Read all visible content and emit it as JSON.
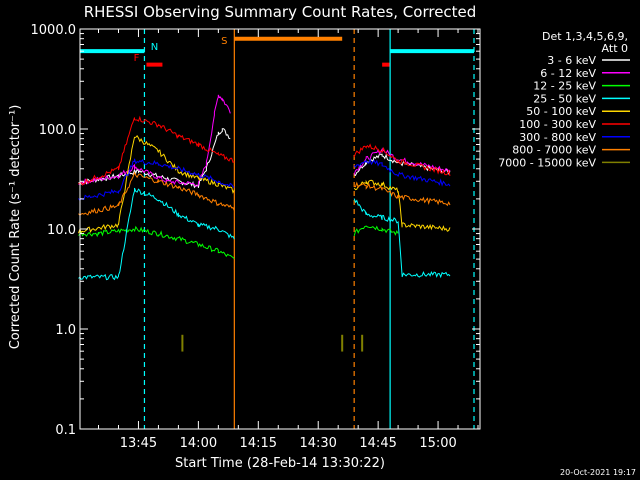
{
  "chart_data": {
    "type": "line",
    "title": "RHESSI Observing Summary Count Rates, Corrected",
    "xlabel": "Start Time (28-Feb-14 13:30:22)",
    "ylabel": "Corrected Count Rate (s⁻¹ detector⁻¹)",
    "yscale": "log",
    "ylim": [
      0.1,
      1000
    ],
    "xlim": [
      "13:30:22",
      "15:10:30"
    ],
    "yticks": [
      {
        "v": 0.1,
        "label": "0.1"
      },
      {
        "v": 1,
        "label": "1.0"
      },
      {
        "v": 10,
        "label": "10.0"
      },
      {
        "v": 100,
        "label": "100.0"
      },
      {
        "v": 1000,
        "label": "1000.0"
      }
    ],
    "xticks": [
      {
        "t": "13:45",
        "label": "13:45"
      },
      {
        "t": "14:00",
        "label": "14:00"
      },
      {
        "t": "14:15",
        "label": "14:15"
      },
      {
        "t": "14:30",
        "label": "14:30"
      },
      {
        "t": "14:45",
        "label": "14:45"
      },
      {
        "t": "15:00",
        "label": "15:00"
      }
    ],
    "legend_header": [
      "Det 1,3,4,5,6,9,",
      "Att 0"
    ],
    "legend_position": "right",
    "series": [
      {
        "name": "3 - 6 keV",
        "color": "#ffffff",
        "points": [
          [
            "13:30",
            "29"
          ],
          [
            "13:40",
            "34"
          ],
          [
            "13:45",
            "38"
          ],
          [
            "13:52",
            "32"
          ],
          [
            "14:00",
            "27"
          ],
          [
            "14:02",
            "40"
          ],
          [
            "14:05",
            "90"
          ],
          [
            "14:06",
            "100"
          ],
          [
            "14:08",
            "82"
          ],
          [
            "14:39",
            "35"
          ],
          [
            "14:42",
            "47"
          ],
          [
            "14:46",
            "55"
          ],
          [
            "14:50",
            "46"
          ],
          [
            "15:03",
            "37"
          ]
        ]
      },
      {
        "name": "6 - 12 keV",
        "color": "#ff00ff",
        "points": [
          [
            "13:30",
            "29"
          ],
          [
            "13:40",
            "34"
          ],
          [
            "13:44",
            "42"
          ],
          [
            "13:52",
            "30"
          ],
          [
            "14:00",
            "28"
          ],
          [
            "14:02",
            "45"
          ],
          [
            "14:04",
            "140"
          ],
          [
            "14:05",
            "220"
          ],
          [
            "14:06",
            "200"
          ],
          [
            "14:08",
            "150"
          ],
          [
            "14:39",
            "37"
          ],
          [
            "14:42",
            "50"
          ],
          [
            "14:46",
            "62"
          ],
          [
            "14:50",
            "50"
          ],
          [
            "15:03",
            "38"
          ]
        ]
      },
      {
        "name": "12 - 25 keV",
        "color": "#00ff00",
        "points": [
          [
            "13:30",
            "9"
          ],
          [
            "13:35",
            "9"
          ],
          [
            "13:44",
            "10"
          ],
          [
            "13:50",
            "9"
          ],
          [
            "13:55",
            "8"
          ],
          [
            "14:00",
            "7"
          ],
          [
            "14:05",
            "6"
          ],
          [
            "14:09",
            "5"
          ],
          [
            "14:39",
            "9"
          ],
          [
            "14:42",
            "11"
          ],
          [
            "14:46",
            "10"
          ],
          [
            "14:50",
            "9"
          ]
        ]
      },
      {
        "name": "25 - 50 keV",
        "color": "#00ffff",
        "points": [
          [
            "13:30",
            "3.3"
          ],
          [
            "13:40",
            "3.3"
          ],
          [
            "13:44",
            "25"
          ],
          [
            "13:50",
            "20"
          ],
          [
            "13:55",
            "14"
          ],
          [
            "14:00",
            "11"
          ],
          [
            "14:05",
            "10"
          ],
          [
            "14:09",
            "8"
          ],
          [
            "14:39",
            "20"
          ],
          [
            "14:42",
            "14"
          ],
          [
            "14:46",
            "13"
          ],
          [
            "14:50",
            "12"
          ],
          [
            "14:51",
            "3.5"
          ],
          [
            "15:03",
            "3.5"
          ]
        ]
      },
      {
        "name": "50 - 100 keV",
        "color": "#ffd700",
        "points": [
          [
            "13:30",
            "9.5"
          ],
          [
            "13:40",
            "11"
          ],
          [
            "13:44",
            "85"
          ],
          [
            "13:50",
            "60"
          ],
          [
            "13:55",
            "38"
          ],
          [
            "14:00",
            "32"
          ],
          [
            "14:05",
            "28"
          ],
          [
            "14:09",
            "24"
          ],
          [
            "14:39",
            "25"
          ],
          [
            "14:42",
            "30"
          ],
          [
            "14:46",
            "28"
          ],
          [
            "14:50",
            "24"
          ],
          [
            "14:51",
            "11"
          ],
          [
            "15:03",
            "10"
          ]
        ]
      },
      {
        "name": "100 - 300 keV",
        "color": "#ff0000",
        "points": [
          [
            "13:30",
            "28"
          ],
          [
            "13:40",
            "40"
          ],
          [
            "13:44",
            "130"
          ],
          [
            "13:50",
            "110"
          ],
          [
            "13:55",
            "85"
          ],
          [
            "14:00",
            "70"
          ],
          [
            "14:05",
            "55"
          ],
          [
            "14:09",
            "48"
          ],
          [
            "14:39",
            "55"
          ],
          [
            "14:42",
            "68"
          ],
          [
            "14:46",
            "62"
          ],
          [
            "14:50",
            "48"
          ],
          [
            "15:03",
            "36"
          ]
        ]
      },
      {
        "name": "300 - 800 keV",
        "color": "#0000ff",
        "points": [
          [
            "13:30",
            "20"
          ],
          [
            "13:40",
            "24"
          ],
          [
            "13:44",
            "48"
          ],
          [
            "13:50",
            "45"
          ],
          [
            "13:55",
            "40"
          ],
          [
            "14:00",
            "35"
          ],
          [
            "14:05",
            "30"
          ],
          [
            "14:09",
            "26"
          ],
          [
            "14:39",
            "42"
          ],
          [
            "14:42",
            "48"
          ],
          [
            "14:46",
            "44"
          ],
          [
            "14:50",
            "35"
          ],
          [
            "15:03",
            "28"
          ]
        ]
      },
      {
        "name": "800 - 7000 keV",
        "color": "#ff8000",
        "points": [
          [
            "13:30",
            "14"
          ],
          [
            "13:40",
            "17"
          ],
          [
            "13:44",
            "35"
          ],
          [
            "13:50",
            "30"
          ],
          [
            "13:55",
            "26"
          ],
          [
            "14:00",
            "22"
          ],
          [
            "14:05",
            "18"
          ],
          [
            "14:09",
            "16"
          ],
          [
            "14:39",
            "28"
          ],
          [
            "14:42",
            "27"
          ],
          [
            "14:46",
            "25"
          ],
          [
            "14:50",
            "21"
          ],
          [
            "15:03",
            "18"
          ]
        ]
      },
      {
        "name": "7000 - 15000 keV",
        "color": "#808000",
        "points": [
          [
            "13:56",
            "0.7"
          ],
          [
            "14:36",
            "0.7"
          ],
          [
            "14:41",
            "0.7"
          ]
        ]
      }
    ],
    "annotations": [
      {
        "label": "N",
        "color": "#00ffff",
        "time": "13:46:30"
      },
      {
        "label": "F",
        "color": "#ff0000",
        "time": "13:46:30"
      },
      {
        "label": "S",
        "color": "#ff8000",
        "time": "14:09"
      }
    ],
    "bars": [
      {
        "label": "",
        "color": "#00ffff",
        "start": "13:30:22",
        "end": "13:46:30",
        "y": 600
      },
      {
        "label": "",
        "color": "#00ffff",
        "start": "14:48:00",
        "end": "15:09:00",
        "y": 600
      },
      {
        "label": "",
        "color": "#ff0000",
        "start": "13:47:00",
        "end": "13:51:00",
        "y": 440
      },
      {
        "label": "",
        "color": "#ff0000",
        "start": "14:46:00",
        "end": "14:48:00",
        "y": 440
      },
      {
        "label": "",
        "color": "#ff8000",
        "start": "14:09:00",
        "end": "14:36:00",
        "y": 800
      }
    ],
    "vlines": [
      {
        "color": "#00ffff",
        "time": "13:46:30",
        "style": "dashed"
      },
      {
        "color": "#ff8000",
        "time": "14:09:00",
        "style": "solid"
      },
      {
        "color": "#ff8000",
        "time": "14:39:00",
        "style": "dashed"
      },
      {
        "color": "#00ffff",
        "time": "14:48:00",
        "style": "solid"
      },
      {
        "color": "#00ffff",
        "time": "15:09:00",
        "style": "dashed"
      }
    ]
  },
  "footer": {
    "timestamp": "20-Oct-2021 19:17"
  }
}
